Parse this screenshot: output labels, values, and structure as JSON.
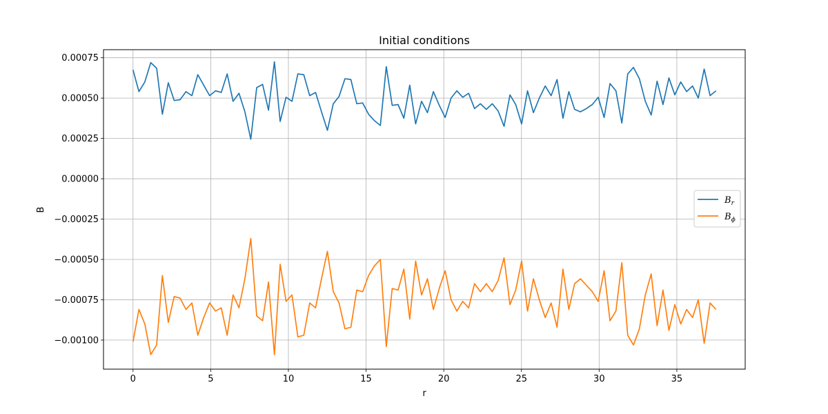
{
  "chart_data": {
    "type": "line",
    "title": "Initial conditions",
    "xlabel": "r",
    "ylabel": "B",
    "xlim": [
      -1.9,
      39.4
    ],
    "ylim": [
      -0.00118,
      0.0008
    ],
    "xticks": [
      0,
      5,
      10,
      15,
      20,
      25,
      30,
      35
    ],
    "xtick_labels": [
      "0",
      "5",
      "10",
      "15",
      "20",
      "25",
      "30",
      "35"
    ],
    "yticks": [
      0.00075,
      0.0005,
      0.00025,
      0.0,
      -0.00025,
      -0.0005,
      -0.00075,
      -0.001
    ],
    "ytick_labels": [
      "0.00075",
      "0.00050",
      "0.00025",
      "0.00000",
      "−0.00025",
      "−0.00050",
      "−0.00075",
      "−0.00100"
    ],
    "grid": true,
    "legend_position": "center-right",
    "x": [
      0.0,
      0.38,
      0.76,
      1.14,
      1.52,
      1.89,
      2.27,
      2.65,
      3.03,
      3.41,
      3.79,
      4.17,
      4.55,
      4.93,
      5.31,
      5.68,
      6.06,
      6.44,
      6.82,
      7.2,
      7.58,
      7.96,
      8.34,
      8.72,
      9.1,
      9.47,
      9.85,
      10.23,
      10.61,
      10.99,
      11.37,
      11.75,
      12.13,
      12.51,
      12.89,
      13.26,
      13.64,
      14.02,
      14.4,
      14.78,
      15.16,
      15.54,
      15.92,
      16.3,
      16.68,
      17.06,
      17.43,
      17.81,
      18.19,
      18.57,
      18.95,
      19.33,
      19.71,
      20.09,
      20.47,
      20.84,
      21.22,
      21.6,
      21.98,
      22.36,
      22.74,
      23.12,
      23.5,
      23.88,
      24.26,
      24.63,
      25.01,
      25.39,
      25.77,
      26.15,
      26.53,
      26.91,
      27.29,
      27.67,
      28.05,
      28.42,
      28.8,
      29.18,
      29.56,
      29.94,
      30.32,
      30.7,
      31.08,
      31.46,
      31.84,
      32.21,
      32.59,
      32.97,
      33.35,
      33.73,
      34.11,
      34.49,
      34.87,
      35.25,
      35.63,
      36.01,
      36.38,
      36.76,
      37.14,
      37.52
    ],
    "series": [
      {
        "name": "B_r",
        "color": "#1f77b4",
        "values": [
          0.000675,
          0.00054,
          0.0006,
          0.00072,
          0.000685,
          0.0004,
          0.000595,
          0.000485,
          0.00049,
          0.00054,
          0.000515,
          0.000645,
          0.00058,
          0.000515,
          0.000545,
          0.000535,
          0.00065,
          0.00048,
          0.00053,
          0.000415,
          0.000245,
          0.000565,
          0.000585,
          0.000425,
          0.000725,
          0.000355,
          0.000505,
          0.00048,
          0.00065,
          0.000645,
          0.000515,
          0.000535,
          0.000415,
          0.0003,
          0.000465,
          0.00051,
          0.00062,
          0.000615,
          0.000465,
          0.00047,
          0.0004,
          0.00036,
          0.00033,
          0.000695,
          0.000455,
          0.00046,
          0.000375,
          0.00058,
          0.00034,
          0.00048,
          0.00041,
          0.00054,
          0.000455,
          0.00038,
          0.0005,
          0.000545,
          0.000505,
          0.00053,
          0.000435,
          0.000465,
          0.00043,
          0.000465,
          0.00042,
          0.000325,
          0.00052,
          0.00046,
          0.00034,
          0.000545,
          0.00041,
          0.0005,
          0.000575,
          0.000515,
          0.000615,
          0.000375,
          0.00054,
          0.00043,
          0.000415,
          0.000435,
          0.00046,
          0.000505,
          0.00038,
          0.00059,
          0.000545,
          0.000345,
          0.00065,
          0.00069,
          0.00062,
          0.00048,
          0.000395,
          0.000605,
          0.00046,
          0.000625,
          0.00052,
          0.0006,
          0.00054,
          0.000575,
          0.0005,
          0.00068,
          0.000515,
          0.000545
        ]
      },
      {
        "name": "B_ϕ",
        "color": "#ff7f0e",
        "values": [
          -0.00101,
          -0.00081,
          -0.0009,
          -0.00109,
          -0.00103,
          -0.0006,
          -0.00089,
          -0.00073,
          -0.00074,
          -0.00081,
          -0.00077,
          -0.00097,
          -0.00086,
          -0.00077,
          -0.00082,
          -0.0008,
          -0.00097,
          -0.00072,
          -0.0008,
          -0.00062,
          -0.00037,
          -0.00085,
          -0.00088,
          -0.00064,
          -0.00109,
          -0.00053,
          -0.00076,
          -0.00072,
          -0.00098,
          -0.00097,
          -0.00077,
          -0.0008,
          -0.00062,
          -0.00045,
          -0.0007,
          -0.00077,
          -0.00093,
          -0.00092,
          -0.00069,
          -0.0007,
          -0.0006,
          -0.00054,
          -0.0005,
          -0.00104,
          -0.00068,
          -0.00069,
          -0.00056,
          -0.00087,
          -0.00051,
          -0.00072,
          -0.00062,
          -0.00081,
          -0.00068,
          -0.00057,
          -0.00075,
          -0.00082,
          -0.00076,
          -0.0008,
          -0.00065,
          -0.0007,
          -0.00065,
          -0.0007,
          -0.00063,
          -0.00049,
          -0.00078,
          -0.00069,
          -0.00051,
          -0.00082,
          -0.00062,
          -0.00075,
          -0.00086,
          -0.00077,
          -0.00092,
          -0.00056,
          -0.00081,
          -0.00065,
          -0.00062,
          -0.00066,
          -0.0007,
          -0.00076,
          -0.00057,
          -0.00088,
          -0.00082,
          -0.00052,
          -0.00097,
          -0.00103,
          -0.00093,
          -0.00072,
          -0.00059,
          -0.00091,
          -0.00069,
          -0.00094,
          -0.00078,
          -0.0009,
          -0.00081,
          -0.00086,
          -0.00075,
          -0.00102,
          -0.00077,
          -0.00081
        ]
      }
    ],
    "legend": [
      {
        "base": "B",
        "sub": "r"
      },
      {
        "base": "B",
        "sub": "ϕ"
      }
    ]
  }
}
